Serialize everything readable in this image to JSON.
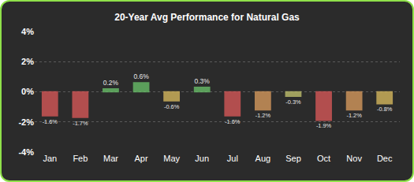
{
  "chart_data": {
    "type": "bar",
    "title": "20-Year Avg Performance for Natural Gas",
    "categories": [
      "Jan",
      "Feb",
      "Mar",
      "Apr",
      "May",
      "Jun",
      "Jul",
      "Aug",
      "Sep",
      "Oct",
      "Nov",
      "Dec"
    ],
    "values": [
      -1.6,
      -1.7,
      0.2,
      0.6,
      -0.6,
      0.3,
      -1.6,
      -1.2,
      -0.3,
      -1.9,
      -1.2,
      -0.8
    ],
    "value_labels": [
      "-1.6%",
      "-1.7%",
      "0.2%",
      "0.6%",
      "-0.6%",
      "0.3%",
      "-1.6%",
      "-1.2%",
      "-0.3%",
      "-1.9%",
      "-1.2%",
      "-0.8%"
    ],
    "colors": [
      "#e05a5a",
      "#e05a5a",
      "#6cc66c",
      "#6cc66c",
      "#e0c060",
      "#6cc66c",
      "#e05a5a",
      "#e0a060",
      "#c8c870",
      "#e05a5a",
      "#e0a060",
      "#e0c060"
    ],
    "ylim": [
      -4,
      4
    ],
    "yticks": [
      {
        "value": -4,
        "label": "-4%"
      },
      {
        "value": -2,
        "label": "-2%"
      },
      {
        "value": 0,
        "label": "0%"
      },
      {
        "value": 2,
        "label": "2%"
      },
      {
        "value": 4,
        "label": "4%"
      }
    ],
    "grid": true,
    "data_labels": true
  }
}
